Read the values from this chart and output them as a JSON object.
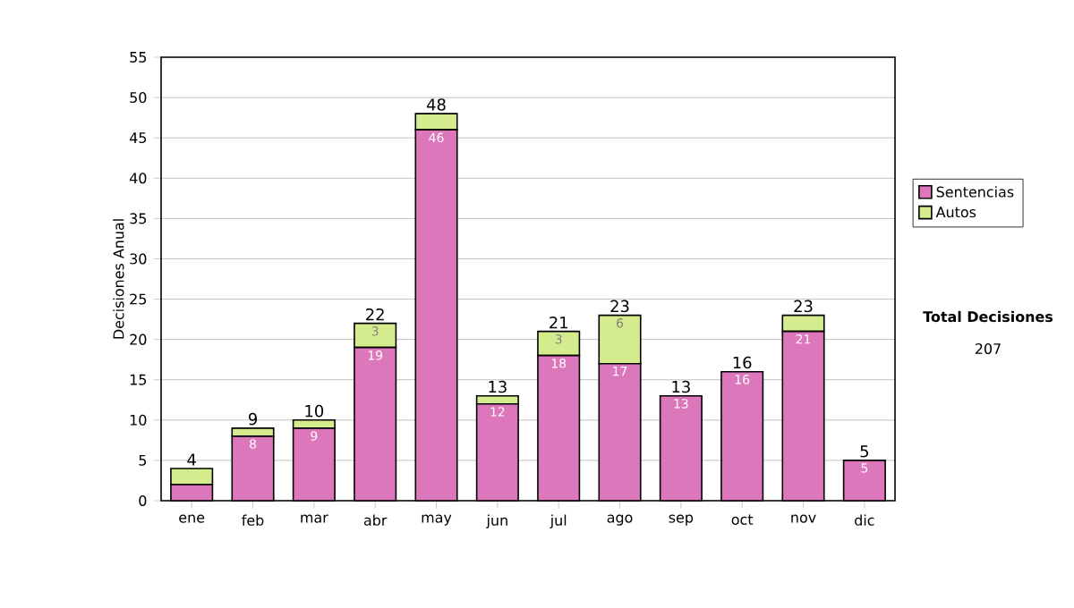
{
  "chart_data": {
    "type": "bar",
    "stacked": true,
    "ylabel": "Decisiones Anual",
    "categories": [
      "ene",
      "feb",
      "mar",
      "abr",
      "may",
      "jun",
      "jul",
      "ago",
      "sep",
      "oct",
      "nov",
      "dic"
    ],
    "series": [
      {
        "name": "Sentencias",
        "color": "#dd77bb",
        "values": [
          2,
          8,
          9,
          19,
          46,
          12,
          18,
          17,
          13,
          16,
          21,
          5
        ],
        "value_labels": [
          null,
          "8",
          "9",
          "19",
          "46",
          "12",
          "18",
          "17",
          "13",
          "16",
          "21",
          "5"
        ]
      },
      {
        "name": "Autos",
        "color": "#d4ec8e",
        "values": [
          2,
          1,
          1,
          3,
          2,
          1,
          3,
          6,
          0,
          0,
          2,
          0
        ],
        "value_labels": [
          null,
          null,
          null,
          "3",
          null,
          null,
          "3",
          "6",
          null,
          null,
          null,
          null
        ]
      }
    ],
    "totals": [
      "4",
      "9",
      "10",
      "22",
      "48",
      "13",
      "21",
      "23",
      "13",
      "16",
      "23",
      "5"
    ],
    "ylim": [
      0,
      55
    ],
    "yticks": [
      0,
      5,
      10,
      15,
      20,
      25,
      30,
      35,
      40,
      45,
      50,
      55
    ],
    "grid": "y",
    "legend": "right",
    "annotations": [
      "Total Decisiones",
      "207"
    ]
  }
}
